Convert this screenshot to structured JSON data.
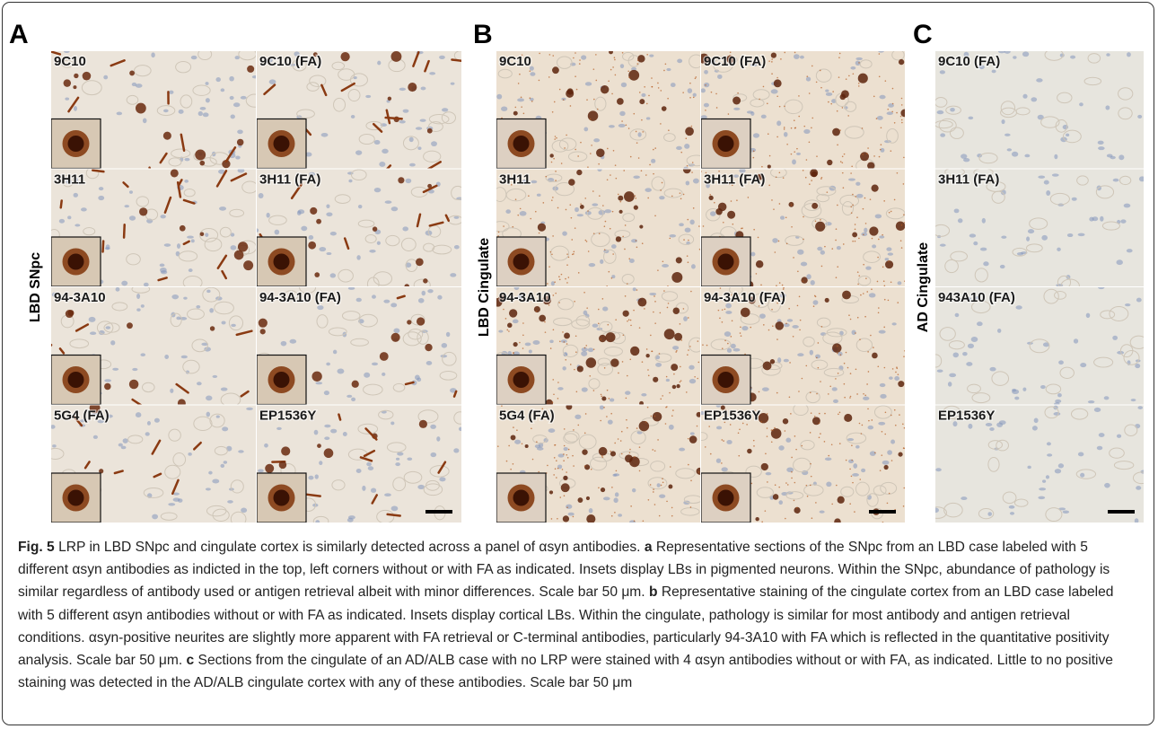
{
  "figure": {
    "panels": [
      {
        "letter": "A",
        "side_label": "LBD SNpc",
        "tiles": [
          "9C10",
          "9C10 (FA)",
          "3H11",
          "3H11 (FA)",
          "94-3A10",
          "94-3A10 (FA)",
          "5G4 (FA)",
          "EP1536Y"
        ]
      },
      {
        "letter": "B",
        "side_label": "LBD Cingulate",
        "tiles": [
          "9C10",
          "9C10 (FA)",
          "3H11",
          "3H11 (FA)",
          "94-3A10",
          "94-3A10 (FA)",
          "5G4 (FA)",
          "EP1536Y"
        ]
      },
      {
        "letter": "C",
        "side_label": "AD Cingulate",
        "tiles": [
          "9C10 (FA)",
          "3H11 (FA)",
          "943A10 (FA)",
          "EP1536Y"
        ]
      }
    ],
    "caption": [
      "Fig. 5",
      " LRP in LBD SNpc and cingulate cortex is similarly detected across a panel of αsyn antibodies. ",
      "a",
      " Representative sections of the SNpc from an LBD case labeled with 5 different αsyn antibodies as indicted in the top, left corners without or with FA as indicated. Insets display LBs in pigmented neurons. Within the SNpc, abundance of pathology is similar regardless of antibody used or antigen retrieval albeit with minor differences. Scale bar 50 μm. ",
      "b",
      " Representative staining of the cingulate cortex from an LBD case labeled with 5 different αsyn antibodies without or with FA as indicated. Insets display cortical LBs. Within the cingulate, pathology is similar for most antibody and antigen retrieval conditions. αsyn-positive neurites are slightly more apparent with FA retrieval or C-terminal antibodies, particularly 94-3A10 with FA which is reflected in the quantitative positivity analysis. Scale bar 50 μm. ",
      "c",
      " Sections from the cingulate of an AD/ALB case with no LRP were stained with 4 αsyn antibodies without or with FA, as indicated. Little to no positive staining was detected in the AD/ALB cingulate cortex with any of these antibodies. Scale bar 50 μm"
    ]
  }
}
